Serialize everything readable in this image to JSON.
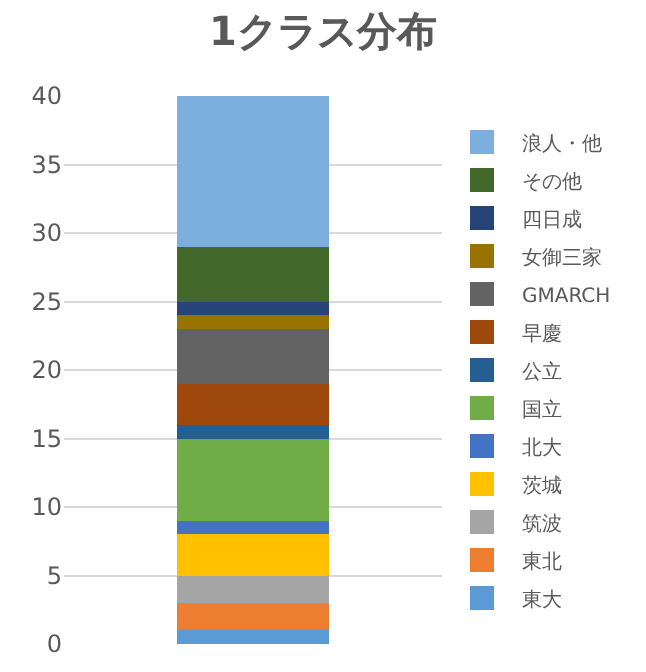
{
  "chart_data": {
    "type": "bar",
    "title": "1クラス分布",
    "categories": [
      null
    ],
    "stacked": true,
    "series": [
      {
        "name": "東大",
        "color": "#5b9bd5",
        "values": [
          1
        ]
      },
      {
        "name": "東北",
        "color": "#ed7d31",
        "values": [
          2
        ]
      },
      {
        "name": "筑波",
        "color": "#a5a5a5",
        "values": [
          2
        ]
      },
      {
        "name": "茨城",
        "color": "#ffc000",
        "values": [
          3
        ]
      },
      {
        "name": "北大",
        "color": "#4472c4",
        "values": [
          1
        ]
      },
      {
        "name": "国立",
        "color": "#70ad47",
        "values": [
          6
        ]
      },
      {
        "name": "公立",
        "color": "#255e91",
        "values": [
          1
        ]
      },
      {
        "name": "早慶",
        "color": "#9e480e",
        "values": [
          3
        ]
      },
      {
        "name": "GMARCH",
        "color": "#636363",
        "values": [
          4
        ]
      },
      {
        "name": "女御三家",
        "color": "#997300",
        "values": [
          1
        ]
      },
      {
        "name": "四日成",
        "color": "#264478",
        "values": [
          1
        ]
      },
      {
        "name": "その他",
        "color": "#43682b",
        "values": [
          4
        ]
      },
      {
        "name": "浪人・他",
        "color": "#7cafdd",
        "values": [
          11
        ]
      }
    ],
    "ylim": [
      0,
      40
    ],
    "yticks": [
      0,
      5,
      10,
      15,
      20,
      25,
      30,
      35,
      40
    ],
    "grid": "y",
    "legend": "right",
    "tick_labels": "y"
  }
}
